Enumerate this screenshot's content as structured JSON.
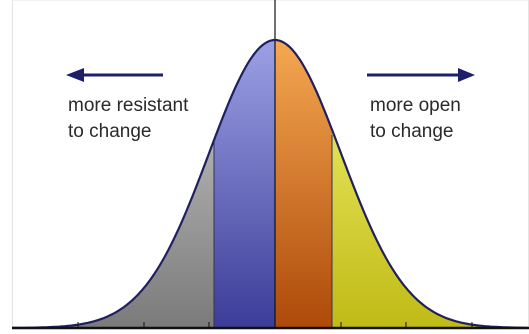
{
  "annotations": {
    "left_line1": "more resistant",
    "left_line2": "to change",
    "right_line1": "more open",
    "right_line2": "to change"
  },
  "colors": {
    "arrow": "#1d1f6a",
    "outline": "#1f2060",
    "axis": "#111111",
    "gray_segment": [
      "#d4d4d4",
      "#7d7d7d"
    ],
    "blue_segment": [
      "#a8acec",
      "#3c3d99"
    ],
    "orange_segment": [
      "#ffb35a",
      "#b04b0a"
    ],
    "yellow_segment": [
      "#fbf97a",
      "#c2bd19"
    ]
  }
}
